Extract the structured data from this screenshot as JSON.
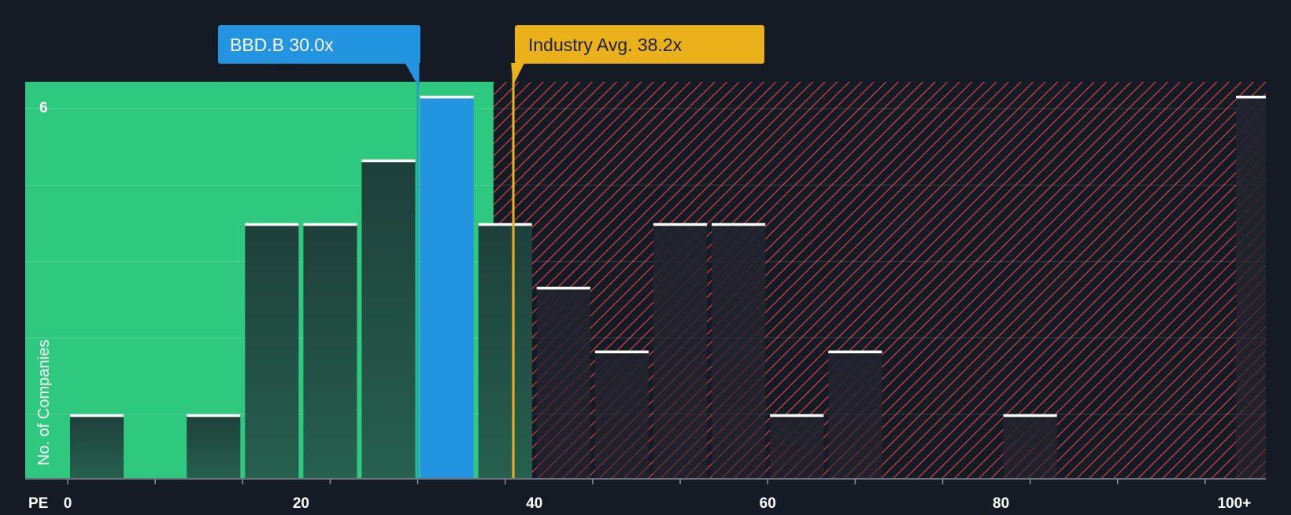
{
  "chart_data": {
    "type": "bar",
    "xlabel": "PE",
    "ylabel": "No. of Companies",
    "ytick_labels": [
      {
        "value": 6,
        "label": "6"
      }
    ],
    "xtick_labels": [
      {
        "value": 0,
        "label": "0"
      },
      {
        "value": 20,
        "label": "20"
      },
      {
        "value": 40,
        "label": "40"
      },
      {
        "value": 60,
        "label": "60"
      },
      {
        "value": 80,
        "label": "80"
      },
      {
        "value": 100,
        "label": "100+"
      }
    ],
    "xlim": [
      0,
      100
    ],
    "ylim": [
      0,
      6
    ],
    "bin_width": 5,
    "bins": [
      {
        "x0": 0,
        "x1": 5,
        "count": 1
      },
      {
        "x0": 5,
        "x1": 10,
        "count": 0
      },
      {
        "x0": 10,
        "x1": 15,
        "count": 1
      },
      {
        "x0": 15,
        "x1": 20,
        "count": 4
      },
      {
        "x0": 20,
        "x1": 25,
        "count": 4
      },
      {
        "x0": 25,
        "x1": 30,
        "count": 5
      },
      {
        "x0": 30,
        "x1": 35,
        "count": 6,
        "highlight": true
      },
      {
        "x0": 35,
        "x1": 40,
        "count": 4
      },
      {
        "x0": 40,
        "x1": 45,
        "count": 3
      },
      {
        "x0": 45,
        "x1": 50,
        "count": 2
      },
      {
        "x0": 50,
        "x1": 55,
        "count": 4
      },
      {
        "x0": 55,
        "x1": 60,
        "count": 4
      },
      {
        "x0": 60,
        "x1": 65,
        "count": 1
      },
      {
        "x0": 65,
        "x1": 70,
        "count": 2
      },
      {
        "x0": 70,
        "x1": 75,
        "count": 0
      },
      {
        "x0": 75,
        "x1": 80,
        "count": 0
      },
      {
        "x0": 80,
        "x1": 85,
        "count": 1
      },
      {
        "x0": 85,
        "x1": 90,
        "count": 0
      },
      {
        "x0": 90,
        "x1": 95,
        "count": 0
      },
      {
        "x0": 95,
        "x1": 100,
        "count": 0
      },
      {
        "x0": 100,
        "x1": 102.5,
        "count": 6,
        "overflow": true
      }
    ],
    "company": {
      "label": "BBD.B 30.0x",
      "value": 30.0
    },
    "industry_avg": {
      "label": "Industry Avg. 38.2x",
      "value": 38.2
    },
    "fair_zone_end": 36.5,
    "grid": true,
    "colors": {
      "background": "#151b24",
      "fair_zone": "#2ec97e",
      "overvalued_hatch": "#d64545",
      "bar_dark": "#1e3f3a",
      "bar_in_red": "#2a2630",
      "highlight_bar": "#2394e0",
      "company_tag": "#2394e0",
      "industry_tag": "#ebb11a",
      "bar_cap": "#ffffff",
      "axis_text": "#ffffff"
    }
  }
}
